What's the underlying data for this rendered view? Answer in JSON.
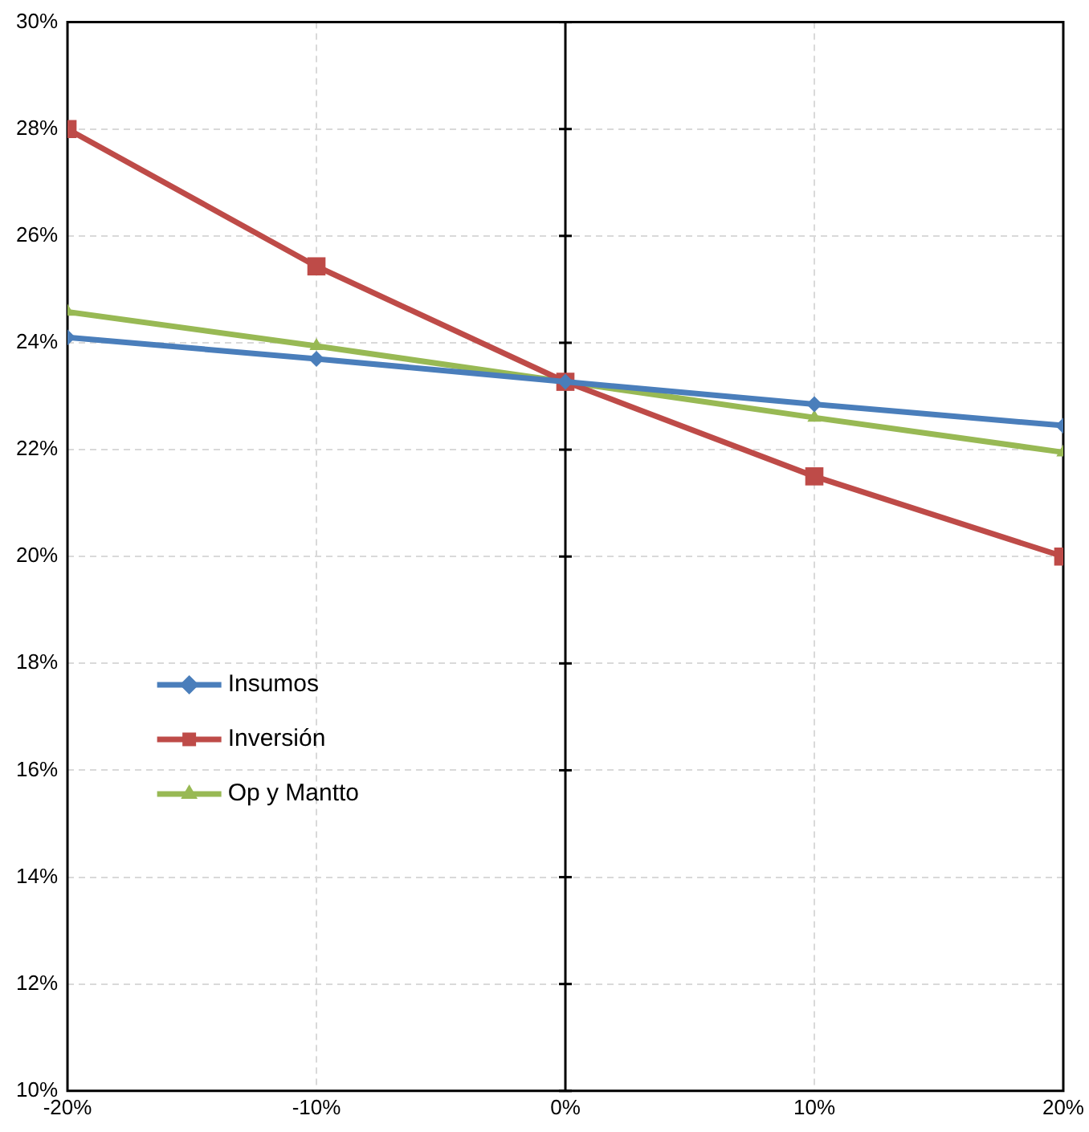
{
  "chart_data": {
    "type": "line",
    "x": [
      -20,
      -10,
      0,
      10,
      20
    ],
    "series": [
      {
        "name": "Insumos",
        "color": "#4a7ebb",
        "marker": "diamond",
        "values": [
          24.1,
          23.7,
          23.27,
          22.85,
          22.45
        ]
      },
      {
        "name": "Inversión",
        "color": "#be4b48",
        "marker": "square",
        "values": [
          28.0,
          25.43,
          23.27,
          21.5,
          20.0
        ]
      },
      {
        "name": "Op y Mantto",
        "color": "#98b954",
        "marker": "triangle",
        "values": [
          24.58,
          23.94,
          23.27,
          22.6,
          21.95
        ]
      }
    ],
    "xlim": [
      -20,
      20
    ],
    "xticks": [
      {
        "value": -20,
        "label": "-20%"
      },
      {
        "value": -10,
        "label": "-10%"
      },
      {
        "value": 0,
        "label": "0%"
      },
      {
        "value": 10,
        "label": "10%"
      },
      {
        "value": 20,
        "label": "20%"
      }
    ],
    "ylim": [
      10,
      30
    ],
    "yticks": [
      {
        "value": 10,
        "label": "10%"
      },
      {
        "value": 12,
        "label": "12%"
      },
      {
        "value": 14,
        "label": "14%"
      },
      {
        "value": 16,
        "label": "16%"
      },
      {
        "value": 18,
        "label": "18%"
      },
      {
        "value": 20,
        "label": "20%"
      },
      {
        "value": 22,
        "label": "22%"
      },
      {
        "value": 24,
        "label": "24%"
      },
      {
        "value": 26,
        "label": "26%"
      },
      {
        "value": 28,
        "label": "28%"
      },
      {
        "value": 30,
        "label": "30%"
      }
    ],
    "ref_lines": [
      {
        "axis": "x",
        "value": 0,
        "color": "#000000"
      }
    ],
    "grid": true,
    "legend": "left",
    "line_style": "solid"
  }
}
